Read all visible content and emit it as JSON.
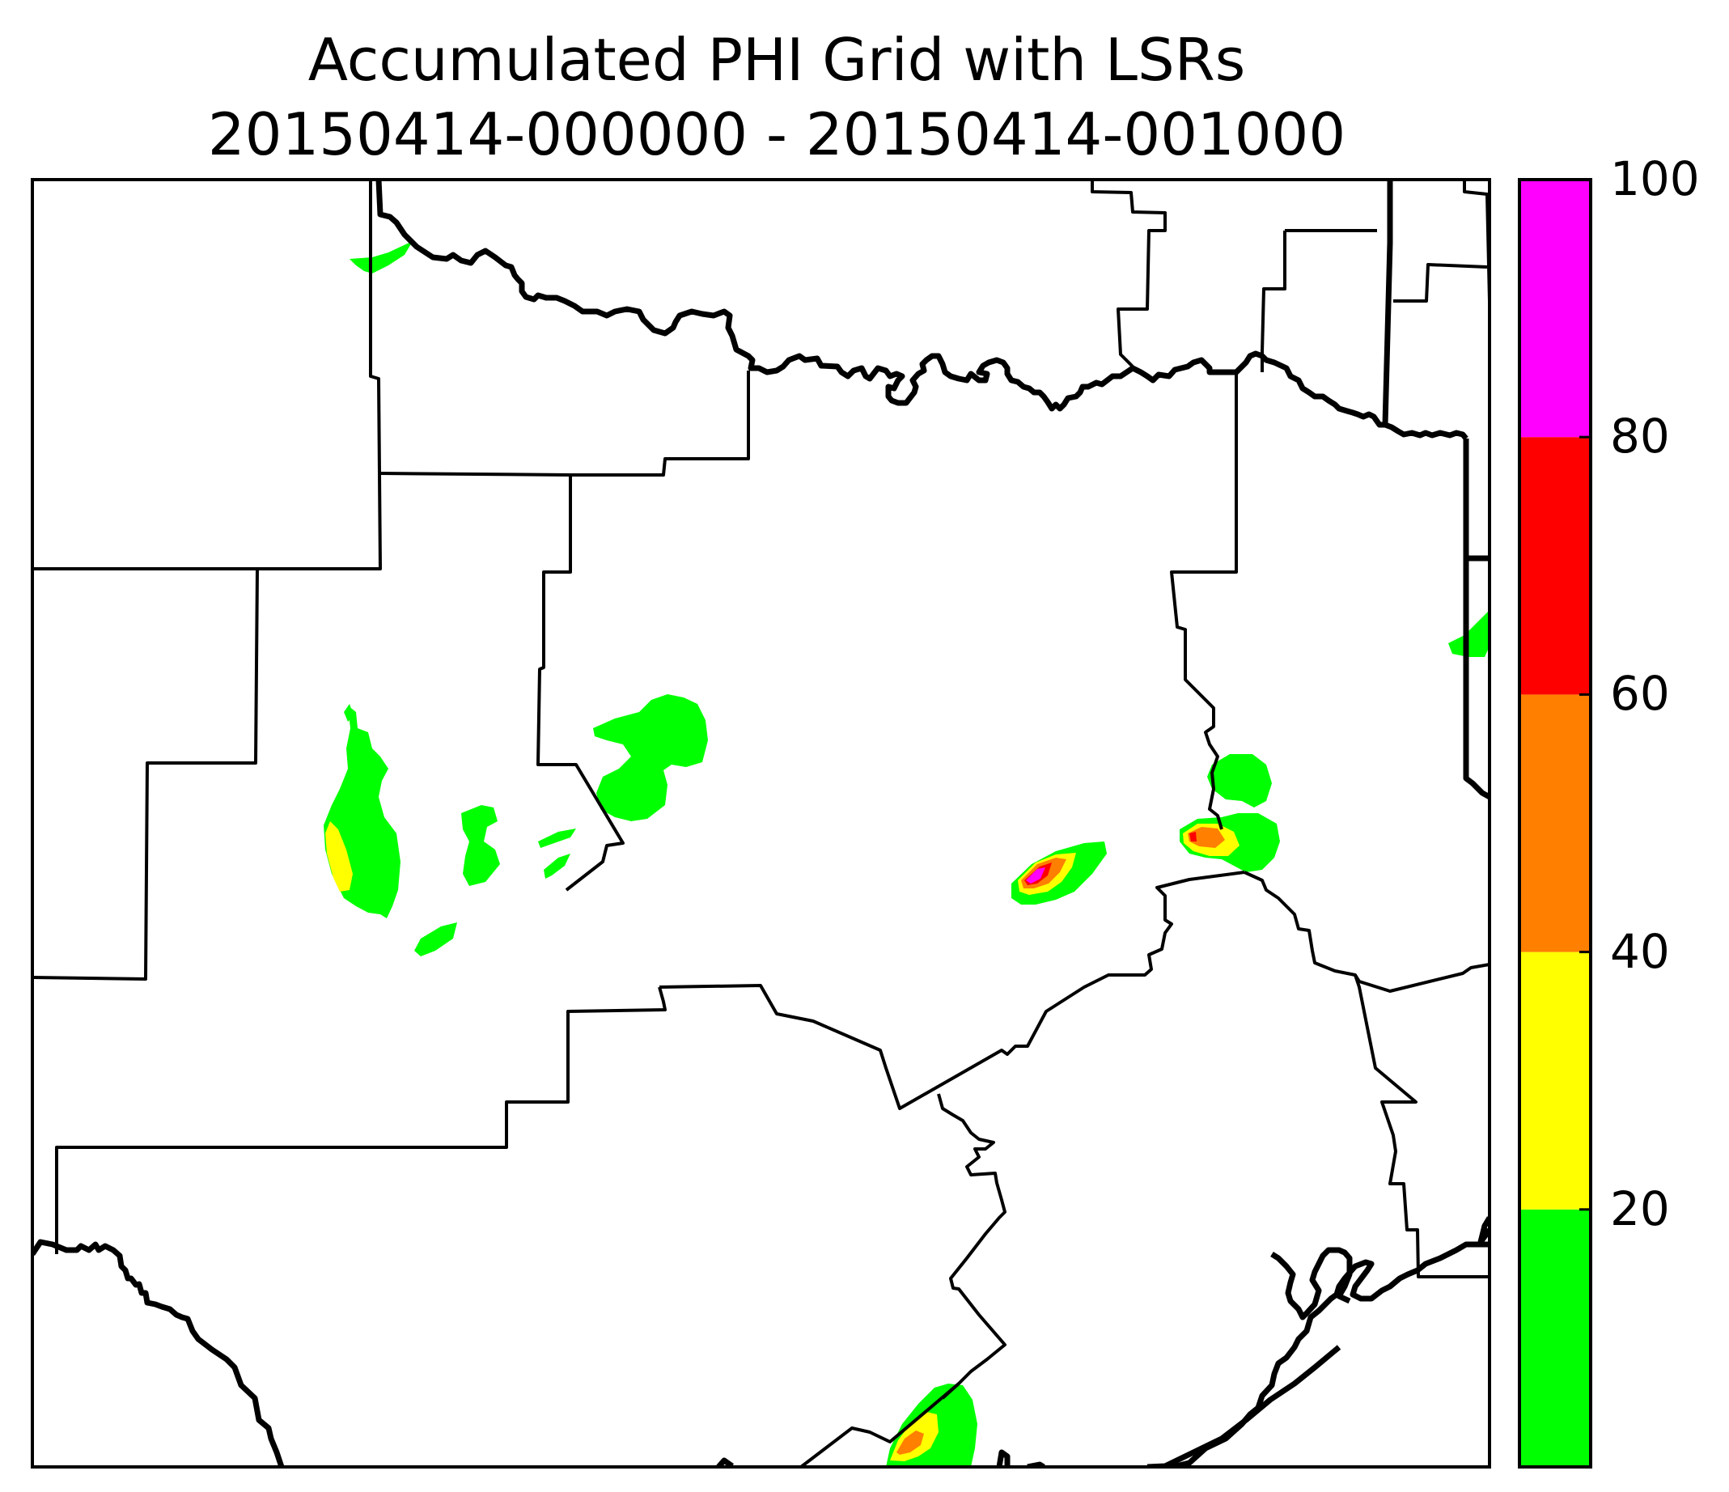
{
  "title": {
    "line1": "Accumulated PHI Grid with LSRs",
    "line2": "20150414-000000 - 20150414-001000"
  },
  "colorbar": {
    "ticks": [
      "20",
      "40",
      "60",
      "80",
      "100"
    ],
    "bins": [
      {
        "range": [
          0,
          20
        ],
        "color": "#00ff00"
      },
      {
        "range": [
          20,
          40
        ],
        "color": "#ffff00"
      },
      {
        "range": [
          40,
          60
        ],
        "color": "#ff7f00"
      },
      {
        "range": [
          60,
          80
        ],
        "color": "#ff0000"
      },
      {
        "range": [
          80,
          100
        ],
        "color": "#ff00ff"
      }
    ]
  },
  "colors": {
    "low": "#00ff00",
    "mid": "#ffff00",
    "high": "#ff7f00",
    "veryhigh": "#ff0000",
    "extreme": "#ff00ff",
    "boundary": "#000000"
  }
}
